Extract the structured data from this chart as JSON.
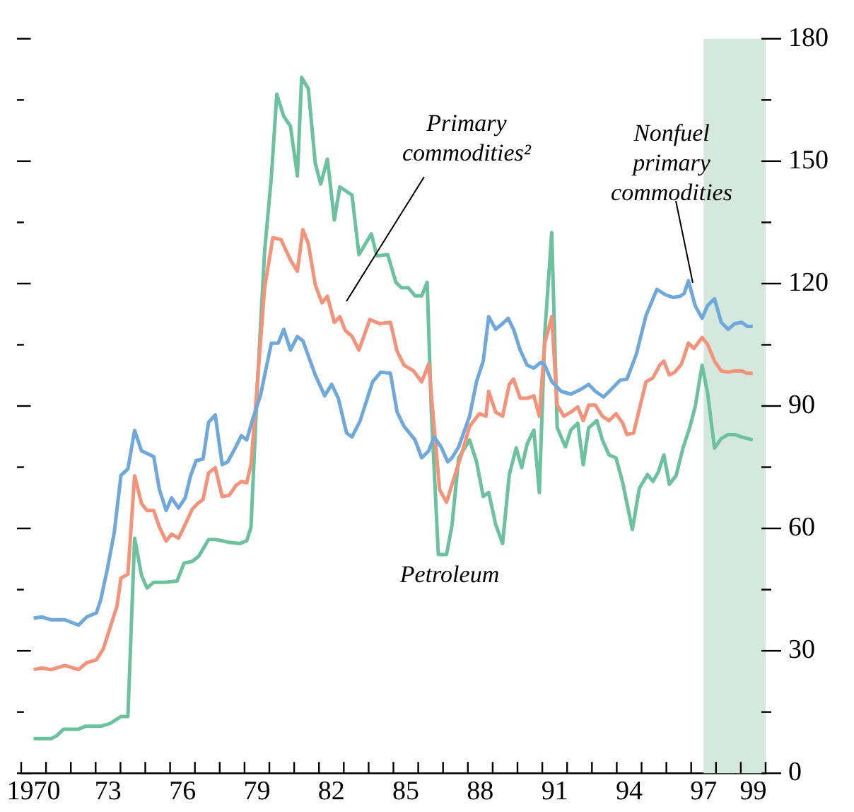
{
  "chart_data": {
    "type": "line",
    "series": [
      {
        "name": "Nonfuel primary commodities",
        "color": "#6fa8dc",
        "x": [
          1970.0,
          1970.33,
          1970.71,
          1971.26,
          1971.81,
          1972.14,
          1972.53,
          1972.7,
          1972.97,
          1973.25,
          1973.52,
          1973.8,
          1974.07,
          1974.35,
          1974.84,
          1975.07,
          1975.34,
          1975.56,
          1975.84,
          1976.11,
          1976.33,
          1976.55,
          1976.83,
          1977.05,
          1977.32,
          1977.6,
          1977.82,
          1978.15,
          1978.37,
          1978.59,
          1978.81,
          1979.14,
          1979.58,
          1979.86,
          1980.08,
          1980.35,
          1980.63,
          1980.85,
          1981.35,
          1981.73,
          1982.01,
          1982.28,
          1982.61,
          1982.83,
          1983.16,
          1983.66,
          1983.99,
          1984.38,
          1984.65,
          1984.93,
          1985.37,
          1985.64,
          1985.92,
          1986.14,
          1986.42,
          1986.69,
          1986.86,
          1987.13,
          1987.57,
          1987.85,
          1988.12,
          1988.34,
          1988.62,
          1988.9,
          1989.12,
          1989.34,
          1989.61,
          1989.89,
          1990.16,
          1990.44,
          1990.6,
          1990.88,
          1991.26,
          1991.65,
          1992.09,
          1992.37,
          1992.64,
          1992.97,
          1993.3,
          1993.63,
          1993.91,
          1994.29,
          1994.68,
          1995.12,
          1995.45,
          1995.78,
          1996.06,
          1996.22,
          1996.39,
          1996.66,
          1996.94,
          1997.16,
          1997.44,
          1997.71,
          1997.99,
          1998.26,
          1998.54,
          1998.76,
          1998.98
        ],
        "values": [
          38,
          38.3,
          37.6,
          37.6,
          36.3,
          38.3,
          39.3,
          42.4,
          50,
          59,
          73,
          74.6,
          84,
          79,
          77.6,
          69.5,
          64.4,
          67.5,
          65,
          67.5,
          73,
          76.6,
          77,
          86,
          87.8,
          75.6,
          76.3,
          80,
          82.7,
          81.7,
          86.4,
          92.5,
          105.4,
          105.4,
          108.8,
          103.7,
          107,
          106,
          97.6,
          92.5,
          95.3,
          91.9,
          83.4,
          82.4,
          86.4,
          95.9,
          98.3,
          98,
          88.5,
          85,
          81.7,
          77.3,
          79,
          82.4,
          80,
          76.3,
          77.3,
          80,
          87.5,
          96,
          101,
          111.9,
          108.8,
          110.2,
          111.5,
          108.8,
          103.7,
          100,
          99.3,
          100.7,
          100,
          96,
          93.6,
          92.9,
          94.2,
          95.3,
          93.6,
          92.2,
          94.2,
          96.3,
          96.6,
          102.7,
          112.2,
          118.6,
          117.3,
          116.6,
          116.9,
          117.6,
          120.7,
          114.6,
          111.5,
          114.6,
          116.3,
          110.5,
          108.8,
          110.2,
          110.5,
          109.5,
          109.5
        ]
      },
      {
        "name": "Primary commodities²",
        "color": "#f4937a",
        "x": [
          1970.0,
          1970.33,
          1970.71,
          1971.26,
          1971.81,
          1972.14,
          1972.53,
          1972.81,
          1973.08,
          1973.36,
          1973.52,
          1973.8,
          1974.07,
          1974.35,
          1974.57,
          1974.84,
          1975.07,
          1975.34,
          1975.56,
          1975.84,
          1976.11,
          1976.39,
          1976.61,
          1976.83,
          1977.05,
          1977.32,
          1977.6,
          1977.88,
          1978.15,
          1978.37,
          1978.59,
          1978.76,
          1979.03,
          1979.31,
          1979.64,
          1979.97,
          1980.35,
          1980.63,
          1980.85,
          1981.07,
          1981.35,
          1981.62,
          1981.84,
          1982.12,
          1982.34,
          1982.56,
          1982.83,
          1983.11,
          1983.55,
          1983.94,
          1984.38,
          1984.65,
          1984.93,
          1985.31,
          1985.64,
          1985.92,
          1986.14,
          1986.36,
          1986.64,
          1986.97,
          1987.24,
          1987.57,
          1987.96,
          1988.23,
          1988.34,
          1988.62,
          1988.9,
          1989.17,
          1989.34,
          1989.61,
          1989.89,
          1990.16,
          1990.38,
          1990.6,
          1990.88,
          1991.1,
          1991.37,
          1991.65,
          1991.93,
          1992.15,
          1992.37,
          1992.64,
          1992.92,
          1993.19,
          1993.47,
          1993.74,
          1993.91,
          1994.18,
          1994.41,
          1994.68,
          1994.96,
          1995.23,
          1995.4,
          1995.62,
          1995.84,
          1996.11,
          1996.39,
          1996.61,
          1996.94,
          1997.16,
          1997.44,
          1997.71,
          1997.99,
          1998.26,
          1998.54,
          1998.76,
          1998.98
        ],
        "values": [
          25.4,
          25.8,
          25.4,
          26.4,
          25.4,
          27.1,
          27.8,
          30.5,
          35.6,
          41,
          47.8,
          48.8,
          72.9,
          66.1,
          64.4,
          64.4,
          60.3,
          56.9,
          58.6,
          57.6,
          61,
          64.7,
          66.1,
          67.1,
          73.6,
          74.9,
          67.8,
          68.1,
          70.5,
          71.5,
          71.2,
          75.6,
          96.6,
          119,
          131.2,
          130.8,
          125.8,
          123,
          133.2,
          129.8,
          119.7,
          115.3,
          116.9,
          110.5,
          111.9,
          108.5,
          107.1,
          103.7,
          111.2,
          110.2,
          110.5,
          103.4,
          100,
          98.6,
          95.9,
          100.3,
          85,
          69.5,
          66.4,
          72.9,
          78,
          85,
          88.1,
          87.5,
          93.6,
          88.5,
          87.5,
          95.3,
          96.6,
          91.9,
          91.9,
          92.5,
          87.5,
          105.4,
          111.9,
          90.2,
          87.5,
          88.5,
          89.8,
          86.4,
          90.2,
          90.2,
          87.5,
          86.4,
          88.1,
          85.8,
          83,
          83.4,
          89.2,
          95.9,
          96.9,
          100,
          101,
          97.6,
          98.3,
          100.3,
          105.4,
          104.1,
          106.8,
          105.1,
          101,
          98.6,
          98.3,
          98.6,
          98.6,
          98,
          98
        ]
      },
      {
        "name": "Petroleum",
        "color": "#6cc29e",
        "x": [
          1970.0,
          1970.71,
          1970.93,
          1971.21,
          1971.81,
          1972.08,
          1972.7,
          1973.08,
          1973.52,
          1973.8,
          1974.07,
          1974.35,
          1974.57,
          1974.84,
          1975.29,
          1975.78,
          1976.06,
          1976.39,
          1976.66,
          1977.05,
          1977.32,
          1977.88,
          1978.32,
          1978.59,
          1978.76,
          1979.03,
          1979.31,
          1979.58,
          1979.8,
          1980.08,
          1980.35,
          1980.63,
          1980.8,
          1981.07,
          1981.35,
          1981.57,
          1981.84,
          1982.12,
          1982.34,
          1982.83,
          1983.11,
          1983.28,
          1983.61,
          1983.83,
          1984.27,
          1984.6,
          1984.82,
          1985.09,
          1985.37,
          1985.64,
          1985.86,
          1986.03,
          1986.31,
          1986.64,
          1986.86,
          1987.13,
          1987.57,
          1987.85,
          1988.12,
          1988.34,
          1988.62,
          1988.9,
          1989.17,
          1989.45,
          1989.67,
          1989.89,
          1990.16,
          1990.38,
          1990.6,
          1990.88,
          1991.1,
          1991.43,
          1991.65,
          1991.93,
          1992.15,
          1992.37,
          1992.7,
          1992.92,
          1993.19,
          1993.47,
          1993.74,
          1994.13,
          1994.41,
          1994.74,
          1994.96,
          1995.18,
          1995.4,
          1995.62,
          1995.89,
          1996.17,
          1996.44,
          1996.66,
          1996.94,
          1997.16,
          1997.44,
          1997.71,
          1997.99,
          1998.26,
          1998.54,
          1998.98
        ],
        "values": [
          8.5,
          8.5,
          9.2,
          10.8,
          10.8,
          11.5,
          11.5,
          12.2,
          13.9,
          13.9,
          57.6,
          48.5,
          45.4,
          46.8,
          46.8,
          47.1,
          51.5,
          51.9,
          53.2,
          57.3,
          57.3,
          56.6,
          56.3,
          57,
          60.3,
          96.6,
          128,
          146,
          166.4,
          161,
          158.6,
          146.4,
          170.5,
          167.8,
          149.5,
          144.4,
          150.5,
          135.6,
          143.7,
          141.7,
          127.1,
          128.8,
          132.2,
          126.8,
          127.1,
          120.3,
          119,
          119,
          117,
          117,
          120.3,
          88.5,
          53.6,
          53.6,
          60.7,
          77.3,
          81.7,
          76.3,
          67.8,
          68.8,
          61,
          56.3,
          73.2,
          79.7,
          74.9,
          80.7,
          84.1,
          68.8,
          107.8,
          132.5,
          84.7,
          80,
          84.1,
          85.8,
          75.6,
          84.7,
          86.4,
          81.7,
          78,
          77.3,
          71.2,
          59.7,
          69.8,
          73.2,
          71.5,
          73.9,
          78,
          70.8,
          72.9,
          79.7,
          84.7,
          89.8,
          100,
          93.2,
          79.7,
          82,
          83,
          83,
          82.4,
          81.7
        ]
      }
    ],
    "xlim": [
      1969.5,
      1999.5
    ],
    "xticks": [
      {
        "value": 1969.5,
        "label": null
      },
      {
        "value": 1970.5,
        "label": null
      },
      {
        "value": 1971.5,
        "label": null
      },
      {
        "value": 1972.5,
        "label": null
      },
      {
        "value": 1973.5,
        "label": null
      },
      {
        "value": 1974.5,
        "label": null
      },
      {
        "value": 1975.5,
        "label": null
      },
      {
        "value": 1976.5,
        "label": null
      },
      {
        "value": 1977.5,
        "label": null
      },
      {
        "value": 1978.5,
        "label": null
      },
      {
        "value": 1979.5,
        "label": null
      },
      {
        "value": 1980.5,
        "label": null
      },
      {
        "value": 1981.5,
        "label": null
      },
      {
        "value": 1982.5,
        "label": null
      },
      {
        "value": 1983.5,
        "label": null
      },
      {
        "value": 1984.5,
        "label": null
      },
      {
        "value": 1985.5,
        "label": null
      },
      {
        "value": 1986.5,
        "label": null
      },
      {
        "value": 1987.5,
        "label": null
      },
      {
        "value": 1988.5,
        "label": null
      },
      {
        "value": 1989.5,
        "label": null
      },
      {
        "value": 1990.5,
        "label": null
      },
      {
        "value": 1991.5,
        "label": null
      },
      {
        "value": 1992.5,
        "label": null
      },
      {
        "value": 1993.5,
        "label": null
      },
      {
        "value": 1994.5,
        "label": null
      },
      {
        "value": 1995.5,
        "label": null
      },
      {
        "value": 1996.5,
        "label": null
      },
      {
        "value": 1997.5,
        "label": null
      },
      {
        "value": 1998.5,
        "label": null
      },
      {
        "value": 1999.5,
        "label": null
      },
      1970,
      {
        "value": 1973,
        "label": "73"
      },
      {
        "value": 1976,
        "label": "76"
      },
      {
        "value": 1979,
        "label": "79"
      },
      {
        "value": 1982,
        "label": "82"
      },
      {
        "value": 1985,
        "label": "85"
      },
      {
        "value": 1988,
        "label": "88"
      },
      {
        "value": 1991,
        "label": "91"
      },
      {
        "value": 1994,
        "label": "94"
      },
      {
        "value": 1997,
        "label": "97"
      },
      {
        "value": 1999,
        "label": "99"
      }
    ],
    "ylim": [
      0,
      180
    ],
    "yticks": [
      0,
      {
        "value": 15,
        "label": null
      },
      30,
      {
        "value": 45,
        "label": null
      },
      60,
      {
        "value": 75,
        "label": null
      },
      90,
      {
        "value": 105,
        "label": null
      },
      120,
      {
        "value": 135,
        "label": null
      },
      150,
      {
        "value": 165,
        "label": null
      },
      180
    ],
    "bands": [
      {
        "axis": "x",
        "from": 1997,
        "to": 1999.5,
        "color": "#d4e8de"
      }
    ]
  }
}
